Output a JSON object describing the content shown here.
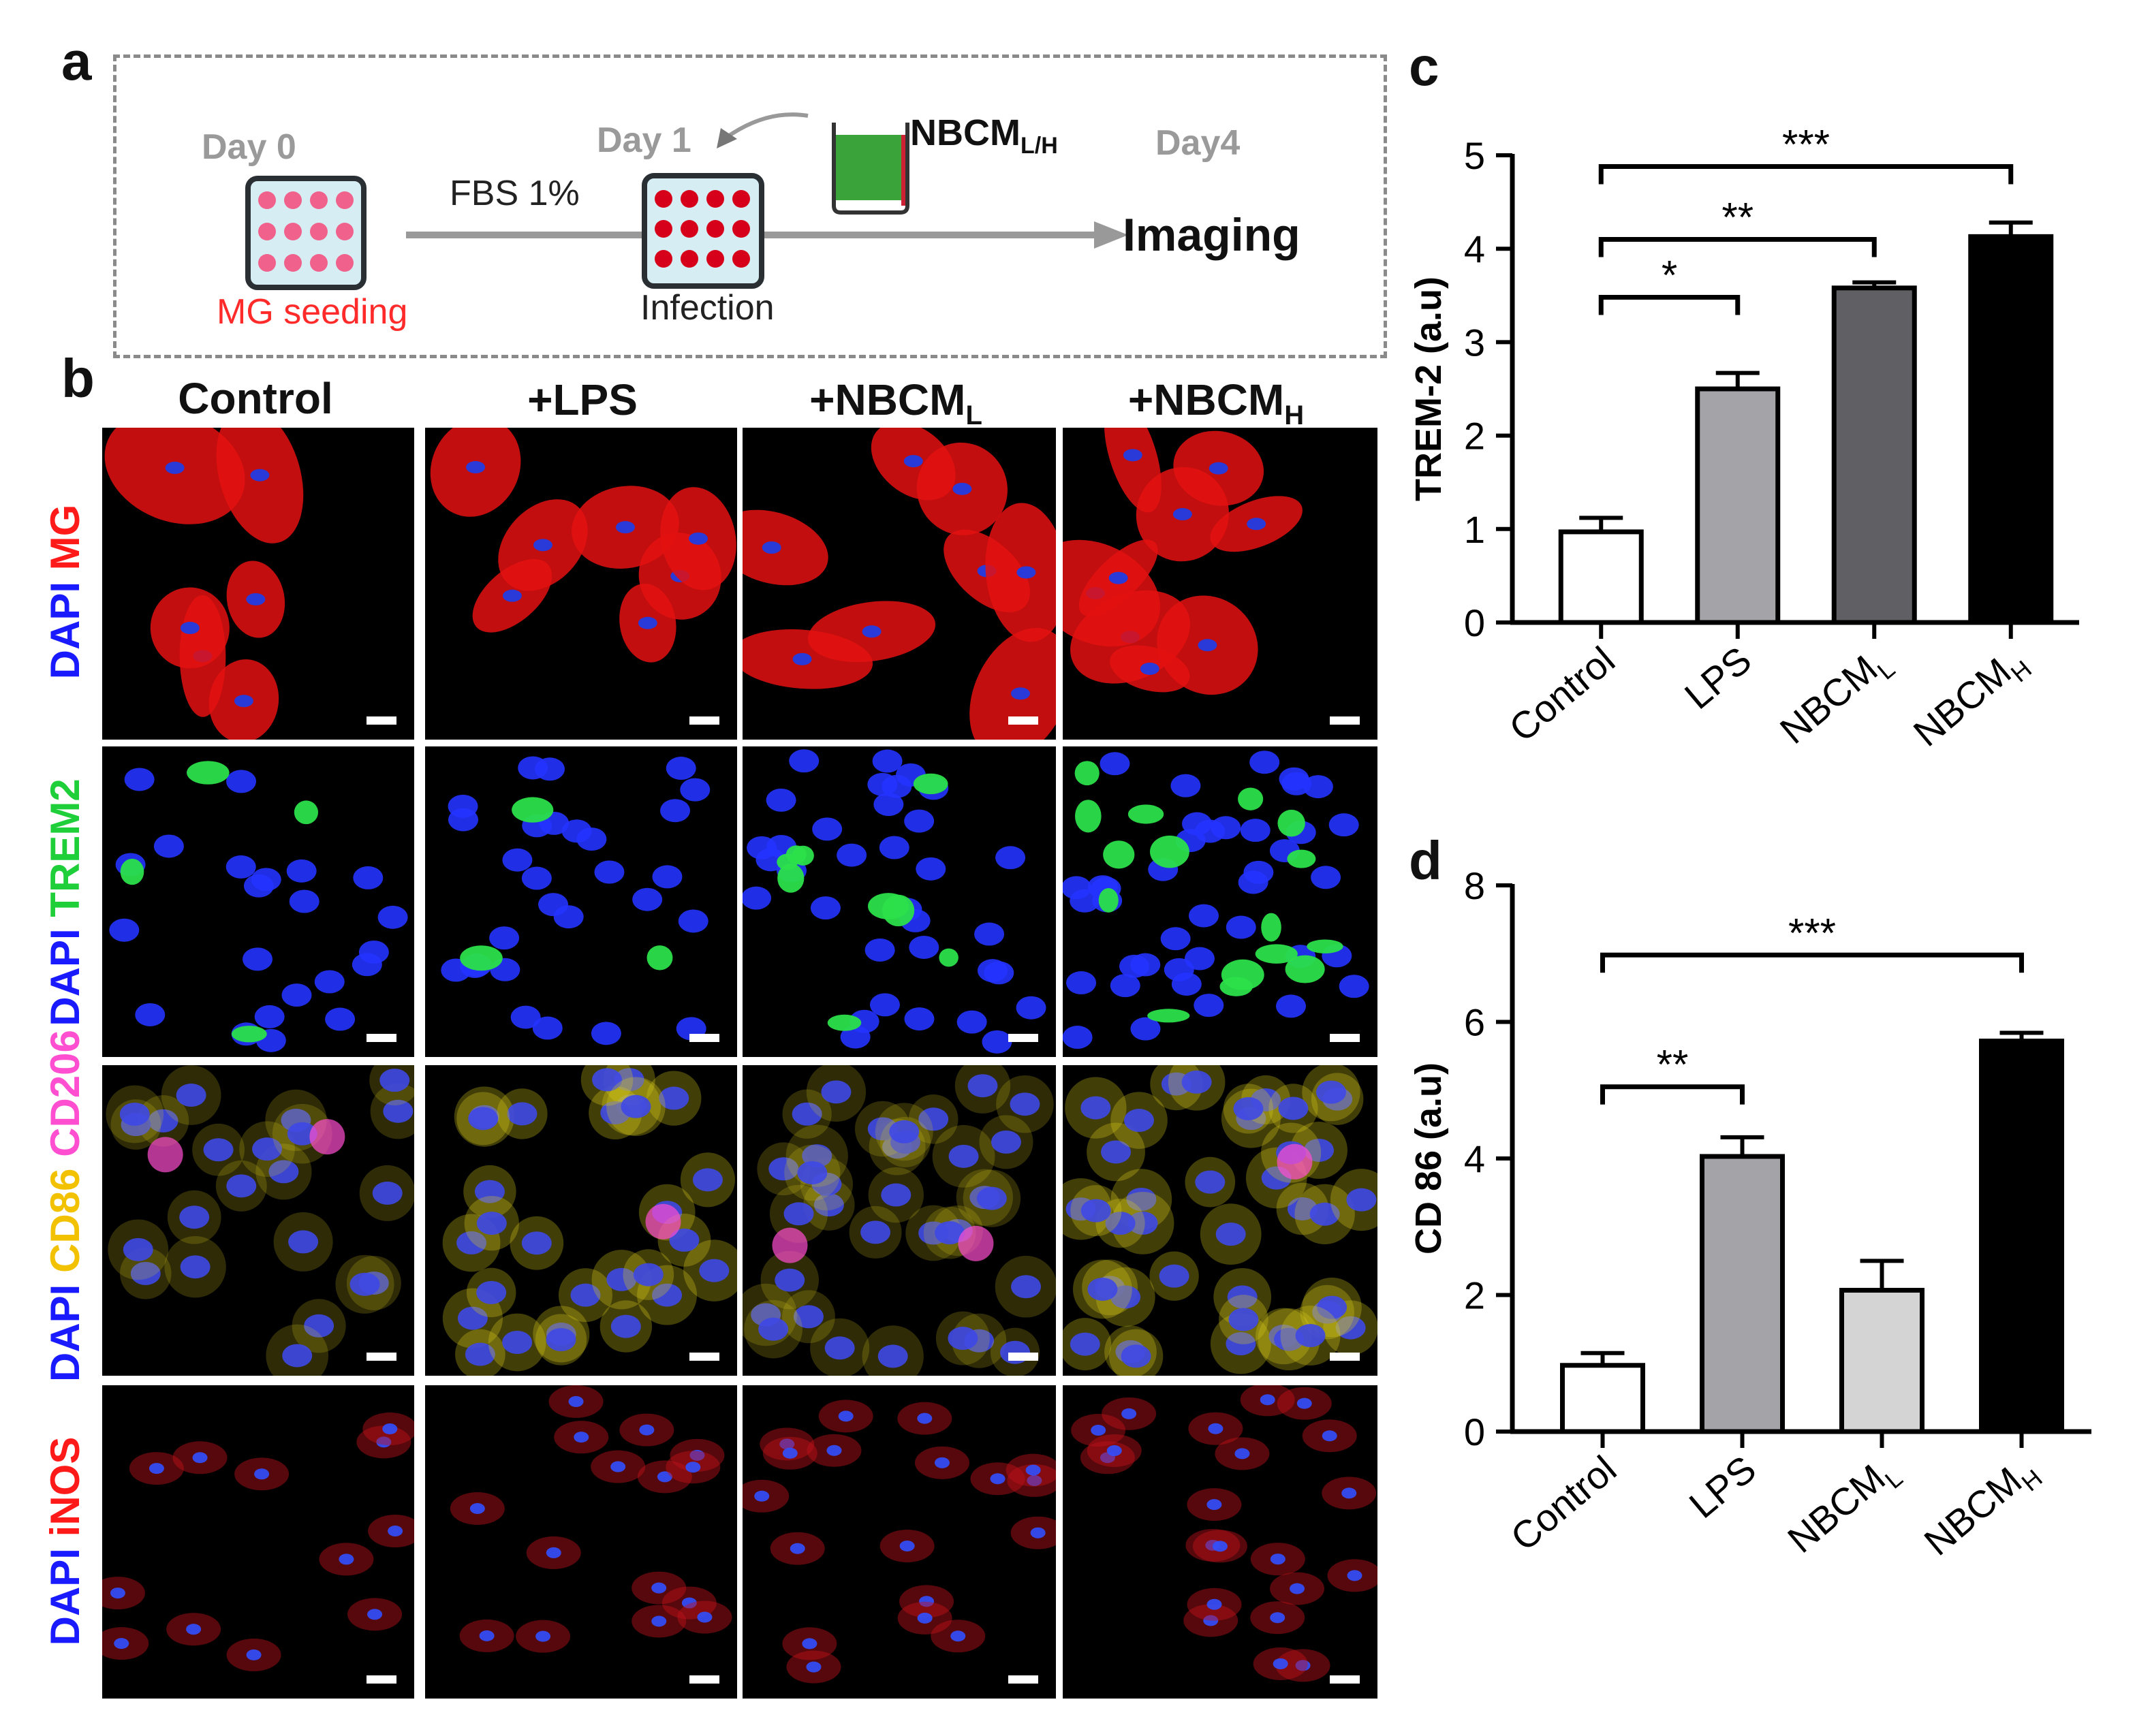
{
  "panel_labels": {
    "a": "a",
    "b": "b",
    "c": "c",
    "d": "d"
  },
  "schematic": {
    "day0": "Day 0",
    "day1": "Day 1",
    "day4": "Day4",
    "fbs": "FBS 1%",
    "mg_seeding": "MG seeding",
    "infection": "Infection",
    "imaging": "Imaging",
    "nbcm_main": "NBCM",
    "nbcm_sub": "L/H",
    "colors": {
      "seed_dot": "#f0628c",
      "infect_dot": "#d7001a",
      "medium": "#3aa33a",
      "arrow": "#999999",
      "plate_border": "#2a2f33",
      "plate_fill": "#d6eef3"
    }
  },
  "micrographs": {
    "columns": [
      {
        "main": "Control",
        "sub": ""
      },
      {
        "main": "+LPS",
        "sub": ""
      },
      {
        "main": "+NBCM",
        "sub": "L"
      },
      {
        "main": "+NBCM",
        "sub": "H"
      }
    ],
    "rows": [
      {
        "parts": [
          {
            "text": "DAPI ",
            "color": "#1a1aff"
          },
          {
            "text": "MG",
            "color": "#ff1a1a"
          }
        ]
      },
      {
        "parts": [
          {
            "text": "DAPI ",
            "color": "#1a1aff"
          },
          {
            "text": "TREM2",
            "color": "#1fcf3a"
          }
        ]
      },
      {
        "parts": [
          {
            "text": "DAPI ",
            "color": "#1a1aff"
          },
          {
            "text": "CD86 ",
            "color": "#f2c200"
          },
          {
            "text": "CD206",
            "color": "#ff4fd0"
          }
        ]
      },
      {
        "parts": [
          {
            "text": "DAPI ",
            "color": "#1a1aff"
          },
          {
            "text": "iNOS",
            "color": "#ff1a1a"
          }
        ]
      }
    ]
  },
  "chart_data": [
    {
      "type": "bar",
      "panel": "c",
      "categories": [
        "Control",
        "LPS",
        "NBCM_L",
        "NBCM_H"
      ],
      "category_labels": [
        {
          "main": "Control",
          "sub": ""
        },
        {
          "main": "LPS",
          "sub": ""
        },
        {
          "main": "NBCM",
          "sub": "L"
        },
        {
          "main": "NBCM",
          "sub": "H"
        }
      ],
      "values": [
        0.97,
        2.5,
        3.58,
        4.13
      ],
      "errors": [
        0.15,
        0.17,
        0.06,
        0.15
      ],
      "bar_colors": [
        "#ffffff",
        "#a3a3a8",
        "#606064",
        "#000000"
      ],
      "ylabel": "TREM-2 (a.u)",
      "ylim": [
        0,
        5
      ],
      "yticks": [
        0,
        1,
        2,
        3,
        4,
        5
      ],
      "significance": [
        {
          "from": 0,
          "to": 1,
          "label": "*",
          "y": 3.48
        },
        {
          "from": 0,
          "to": 2,
          "label": "**",
          "y": 4.1
        },
        {
          "from": 0,
          "to": 3,
          "label": "***",
          "y": 4.88
        }
      ]
    },
    {
      "type": "bar",
      "panel": "d",
      "categories": [
        "Control",
        "LPS",
        "NBCM_L",
        "NBCM_H"
      ],
      "category_labels": [
        {
          "main": "Control",
          "sub": ""
        },
        {
          "main": "LPS",
          "sub": ""
        },
        {
          "main": "NBCM",
          "sub": "L"
        },
        {
          "main": "NBCM",
          "sub": "H"
        }
      ],
      "values": [
        0.97,
        4.03,
        2.07,
        5.72
      ],
      "errors": [
        0.18,
        0.28,
        0.43,
        0.12
      ],
      "bar_colors": [
        "#ffffff",
        "#a3a3a8",
        "#d4d4d4",
        "#000000"
      ],
      "ylabel": "CD 86 (a.u)",
      "ylim": [
        0,
        8
      ],
      "yticks": [
        0,
        2,
        4,
        6,
        8
      ],
      "significance": [
        {
          "from": 0,
          "to": 1,
          "label": "**",
          "y": 5.05
        },
        {
          "from": 0,
          "to": 3,
          "label": "***",
          "y": 6.98
        }
      ]
    }
  ]
}
